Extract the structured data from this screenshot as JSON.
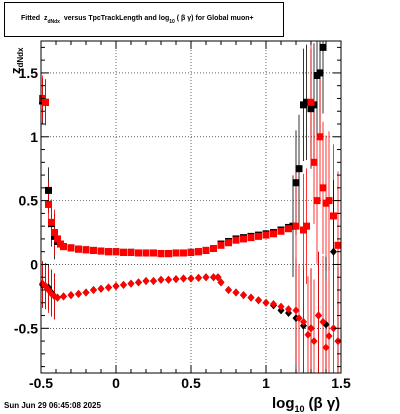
{
  "chart_data": {
    "type": "scatter",
    "title": {
      "prefix": "Fitted",
      "z": "z",
      "z_sub": "dNdx",
      "middle": "versus TpcTrackLength and log",
      "log_sub": "10",
      "paren": "( β γ)",
      "suffix": "for Global muon+"
    },
    "xlabel_main": "log",
    "xlabel_sub": "10",
    "xlabel_tail": "(β γ)",
    "ylabel_main": "z",
    "ylabel_sub": "dNdx",
    "xlim": [
      -0.5,
      1.5
    ],
    "ylim": [
      -0.85,
      1.75
    ],
    "x_ticks": [
      "-0.5",
      "0",
      "0.5",
      "1",
      "1.5"
    ],
    "x_tick_values": [
      -0.5,
      0,
      0.5,
      1,
      1.5
    ],
    "y_ticks": [
      "-0.5",
      "0",
      "0.5",
      "1",
      "1.5"
    ],
    "y_tick_values": [
      -0.5,
      0,
      0.5,
      1,
      1.5
    ],
    "grid": true,
    "series": [
      {
        "marker": "square",
        "color": "#000000",
        "x": [
          -0.49,
          -0.47,
          -0.45,
          -0.43,
          -0.41,
          -0.39,
          -0.37,
          -0.35,
          -0.3,
          -0.25,
          -0.2,
          -0.15,
          -0.1,
          -0.05,
          0,
          0.05,
          0.1,
          0.15,
          0.2,
          0.25,
          0.3,
          0.35,
          0.4,
          0.45,
          0.5,
          0.55,
          0.6,
          0.65,
          0.7,
          0.75,
          0.8,
          0.85,
          0.9,
          0.95,
          1.0,
          1.05,
          1.1,
          1.15,
          1.18,
          1.2,
          1.22,
          1.25,
          1.27,
          1.3,
          1.32,
          1.34,
          1.36,
          1.38
        ],
        "y": [
          1.28,
          1.27,
          0.58,
          0.32,
          0.22,
          0.18,
          0.16,
          0.14,
          0.13,
          0.12,
          0.115,
          0.11,
          0.105,
          0.1,
          0.1,
          0.095,
          0.095,
          0.09,
          0.09,
          0.09,
          0.085,
          0.085,
          0.09,
          0.09,
          0.095,
          0.1,
          0.11,
          0.125,
          0.16,
          0.18,
          0.2,
          0.21,
          0.22,
          0.23,
          0.24,
          0.25,
          0.27,
          0.29,
          0.3,
          0.64,
          0.75,
          1.25,
          1.27,
          1.22,
          1.25,
          1.48,
          1.5,
          1.7
        ]
      },
      {
        "marker": "square",
        "color": "#ff0000",
        "x": [
          -0.49,
          -0.47,
          -0.45,
          -0.43,
          -0.41,
          -0.39,
          -0.37,
          -0.35,
          -0.3,
          -0.25,
          -0.2,
          -0.15,
          -0.1,
          -0.05,
          0,
          0.05,
          0.1,
          0.15,
          0.2,
          0.25,
          0.3,
          0.35,
          0.4,
          0.45,
          0.5,
          0.55,
          0.6,
          0.65,
          0.7,
          0.75,
          0.8,
          0.85,
          0.9,
          0.95,
          1.0,
          1.05,
          1.1,
          1.15,
          1.2,
          1.25,
          1.27,
          1.3,
          1.32,
          1.34,
          1.36,
          1.38,
          1.4,
          1.42,
          1.45,
          1.48
        ],
        "y": [
          1.3,
          1.27,
          0.47,
          0.33,
          0.25,
          0.2,
          0.16,
          0.14,
          0.13,
          0.12,
          0.115,
          0.11,
          0.105,
          0.1,
          0.1,
          0.095,
          0.095,
          0.09,
          0.09,
          0.09,
          0.085,
          0.085,
          0.09,
          0.09,
          0.095,
          0.1,
          0.11,
          0.125,
          0.15,
          0.17,
          0.19,
          0.2,
          0.21,
          0.22,
          0.23,
          0.24,
          0.26,
          0.28,
          0.3,
          0.27,
          0.3,
          1.27,
          0.8,
          0.5,
          1.0,
          0.6,
          0.48,
          0.5,
          0.38,
          0.15
        ]
      },
      {
        "marker": "diamond",
        "color": "#000000",
        "x": [
          -0.49,
          -0.47,
          -0.45,
          -0.43,
          -0.41,
          -0.39,
          -0.35,
          -0.3,
          -0.25,
          -0.2,
          -0.15,
          -0.1,
          -0.05,
          0,
          0.05,
          0.1,
          0.15,
          0.2,
          0.25,
          0.3,
          0.35,
          0.4,
          0.45,
          0.5,
          0.55,
          0.6,
          0.65,
          0.68,
          0.7,
          0.75,
          0.8,
          0.85,
          0.9,
          0.95,
          1.0,
          1.05,
          1.1,
          1.15,
          1.2,
          1.25,
          1.3,
          1.35,
          1.4,
          1.45,
          1.48
        ],
        "y": [
          -0.16,
          -0.17,
          -0.18,
          -0.22,
          -0.25,
          -0.26,
          -0.25,
          -0.24,
          -0.23,
          -0.22,
          -0.2,
          -0.19,
          -0.18,
          -0.17,
          -0.16,
          -0.15,
          -0.14,
          -0.13,
          -0.13,
          -0.12,
          -0.12,
          -0.115,
          -0.11,
          -0.11,
          -0.105,
          -0.1,
          -0.1,
          -0.1,
          -0.14,
          -0.2,
          -0.22,
          -0.24,
          -0.26,
          -0.28,
          -0.3,
          -0.32,
          -0.36,
          -0.38,
          -0.42,
          -0.48,
          -0.5,
          -0.4,
          -0.47,
          0.1,
          -0.6
        ]
      },
      {
        "marker": "diamond",
        "color": "#ff0000",
        "x": [
          -0.49,
          -0.47,
          -0.45,
          -0.43,
          -0.41,
          -0.39,
          -0.35,
          -0.3,
          -0.25,
          -0.2,
          -0.15,
          -0.1,
          -0.05,
          0,
          0.05,
          0.1,
          0.15,
          0.2,
          0.25,
          0.3,
          0.35,
          0.4,
          0.45,
          0.5,
          0.55,
          0.6,
          0.65,
          0.68,
          0.7,
          0.75,
          0.8,
          0.85,
          0.9,
          0.95,
          1.0,
          1.05,
          1.1,
          1.15,
          1.2,
          1.22,
          1.25,
          1.28,
          1.3,
          1.32,
          1.35,
          1.38,
          1.4,
          1.42,
          1.45,
          1.48
        ],
        "y": [
          -0.15,
          -0.17,
          -0.2,
          -0.23,
          -0.25,
          -0.26,
          -0.25,
          -0.24,
          -0.23,
          -0.22,
          -0.2,
          -0.19,
          -0.18,
          -0.17,
          -0.16,
          -0.15,
          -0.14,
          -0.13,
          -0.13,
          -0.12,
          -0.12,
          -0.115,
          -0.11,
          -0.11,
          -0.105,
          -0.1,
          -0.1,
          -0.1,
          -0.14,
          -0.2,
          -0.22,
          -0.24,
          -0.26,
          -0.28,
          -0.3,
          -0.31,
          -0.33,
          -0.35,
          -0.36,
          -0.42,
          -0.45,
          -0.55,
          -0.5,
          -0.6,
          -0.4,
          -0.45,
          -0.65,
          -0.56,
          -0.5,
          -0.6
        ]
      }
    ]
  },
  "footer": {
    "timestamp": "Sun Jun 29 06:45:08 2025"
  }
}
